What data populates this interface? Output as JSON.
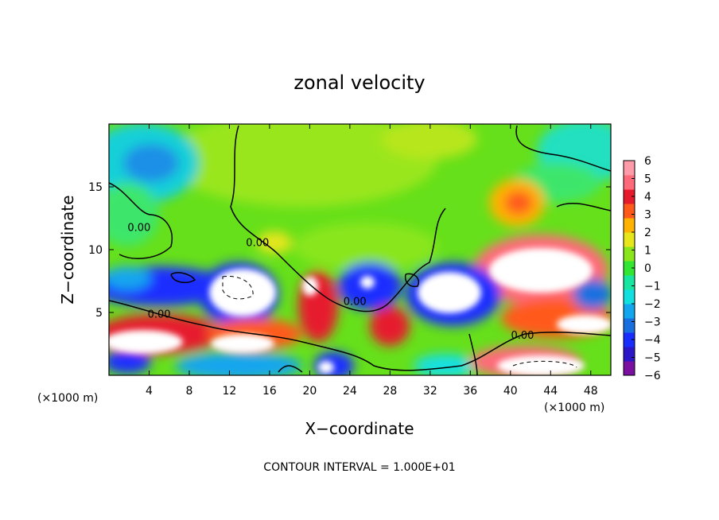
{
  "chart_data": {
    "type": "heatmap",
    "title": "zonal velocity",
    "xlabel": "X−coordinate",
    "ylabel": "Z−coordinate",
    "x_unit": "(×1000 m)",
    "z_unit": "(×1000 m)",
    "xlim": [
      0,
      50
    ],
    "ylim": [
      0,
      20
    ],
    "x_ticks": [
      4,
      8,
      12,
      16,
      20,
      24,
      28,
      32,
      36,
      40,
      44,
      48
    ],
    "y_ticks": [
      5,
      10,
      15
    ],
    "colorbar": {
      "ticks": [
        6,
        5,
        4,
        3,
        2,
        1,
        0,
        -1,
        -2,
        -3,
        -4,
        -5,
        -6
      ],
      "tick_labels": [
        "6",
        "5",
        "4",
        "3",
        "2",
        "1",
        "0",
        "−1",
        "−2",
        "−3",
        "−4",
        "−5",
        "−6"
      ],
      "min": -6,
      "max": 6,
      "colors": [
        "#7a0fa0",
        "#2b17c8",
        "#1a2dff",
        "#1a6fe0",
        "#12a6ee",
        "#12e0e0",
        "#18e6a0",
        "#33e633",
        "#8ae61a",
        "#e6e61a",
        "#ffb300",
        "#ff5a1a",
        "#e61a2d",
        "#ff6a7a",
        "#ff9aa8"
      ]
    },
    "contour_labels": [
      {
        "text": "0.00",
        "x": 3.0,
        "z": 11.5
      },
      {
        "text": "0.00",
        "x": 14.8,
        "z": 10.3
      },
      {
        "text": "0.00",
        "x": 5.0,
        "z": 4.6
      },
      {
        "text": "0.00",
        "x": 24.5,
        "z": 5.6
      },
      {
        "text": "0.00",
        "x": 41.2,
        "z": 2.9
      }
    ],
    "contour_interval": "CONTOUR INTERVAL = 1.000E+01"
  }
}
